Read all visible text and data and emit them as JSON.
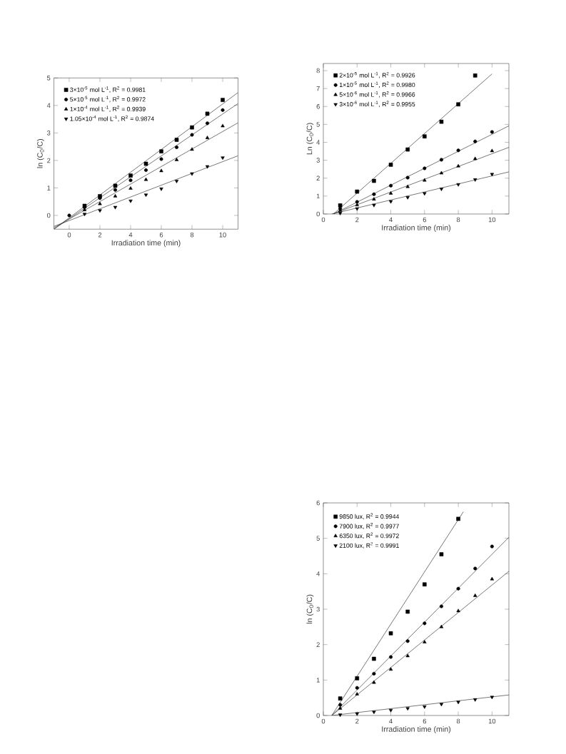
{
  "chart_data": [
    {
      "type": "scatter",
      "xlabel": "Irradiation time (min)",
      "ylabel": "ln (C$_{0}$/C)",
      "xlim": [
        -1,
        11
      ],
      "ylim": [
        -0.5,
        5
      ],
      "xticks": [
        0,
        2,
        4,
        6,
        8,
        10
      ],
      "yticks": [
        0,
        1,
        2,
        3,
        4,
        5
      ],
      "legend": "top left",
      "x": [
        1,
        2,
        3,
        4,
        5,
        6,
        7,
        8,
        9,
        10
      ],
      "series": [
        {
          "name": "3×10$^{-5}$ mol L$^{-1}$,       R$^{2}$ = 0.9981",
          "color": "#000000",
          "marker": "square",
          "values": [
            0.35,
            0.7,
            1.08,
            1.45,
            1.88,
            2.33,
            2.75,
            3.2,
            3.7,
            4.2
          ]
        },
        {
          "name": "5×10$^{-5}$ mol L$^{-1}$,       R$^{2}$ = 0.9972",
          "color": "#000000",
          "marker": "circle",
          "x": [
            0,
            1,
            2,
            3,
            4,
            5,
            6,
            7,
            8,
            9,
            10
          ],
          "values": [
            0.0,
            0.3,
            0.63,
            0.93,
            1.28,
            1.65,
            2.05,
            2.48,
            2.93,
            3.35,
            3.83
          ]
        },
        {
          "name": "1×10$^{-4}$ mol L$^{-1}$,       R$^{2}$ = 0.9939",
          "color": "#000000",
          "marker": "triangle",
          "values": [
            0.2,
            0.42,
            0.7,
            0.98,
            1.3,
            1.62,
            2.02,
            2.4,
            2.82,
            3.25
          ]
        },
        {
          "name": "1.05×10$^{-4}$ mol L$^{-1}$, R$^{2}$ = 0.9874",
          "color": "#000000",
          "marker": "triangle-down",
          "values": [
            0.05,
            0.18,
            0.3,
            0.53,
            0.75,
            0.97,
            1.25,
            1.52,
            1.78,
            2.1
          ]
        },
        {
          "type": "line",
          "color": "#333333",
          "x": [
            -1,
            11
          ],
          "values": [
            -0.5,
            4.47
          ]
        },
        {
          "type": "line",
          "color": "#333333",
          "x": [
            -1,
            11
          ],
          "values": [
            -0.5,
            4.07
          ]
        },
        {
          "type": "line",
          "color": "#333333",
          "x": [
            -1,
            11
          ],
          "values": [
            -0.45,
            3.37
          ]
        },
        {
          "type": "line",
          "color": "#333333",
          "x": [
            -1,
            11
          ],
          "values": [
            -0.4,
            2.17
          ]
        }
      ]
    },
    {
      "type": "scatter",
      "xlabel": "Irradiation time (min)",
      "ylabel": "Ln (C$_{0}$/C)",
      "xlim": [
        0,
        11
      ],
      "ylim": [
        0,
        8.4
      ],
      "xticks": [
        0,
        2,
        4,
        6,
        8,
        10
      ],
      "yticks": [
        0,
        1,
        2,
        3,
        4,
        5,
        6,
        7,
        8
      ],
      "legend": "top left",
      "x": [
        1,
        2,
        3,
        4,
        5,
        6,
        7,
        8,
        9,
        10
      ],
      "series": [
        {
          "name": "2×10$^{-5}$ mol L$^{-1}$,  R$^{2}$ = 0.9926",
          "color": "#000000",
          "marker": "square",
          "x": [
            1,
            2,
            3,
            4,
            5,
            6,
            7,
            8,
            9
          ],
          "values": [
            0.48,
            1.25,
            1.85,
            2.75,
            3.6,
            4.33,
            5.15,
            6.12,
            7.73
          ]
        },
        {
          "name": "1×10$^{-5}$ mol L$^{-1}$,  R$^{2}$ = 0.9980",
          "color": "#000000",
          "marker": "circle",
          "values": [
            0.3,
            0.68,
            1.1,
            1.58,
            2.03,
            2.55,
            3.03,
            3.55,
            4.05,
            4.58
          ]
        },
        {
          "name": "5×10$^{-6}$ mol L$^{-1}$,  R$^{2}$ = 0.9966",
          "color": "#000000",
          "marker": "triangle",
          "values": [
            0.2,
            0.5,
            0.82,
            1.15,
            1.52,
            1.88,
            2.28,
            2.67,
            3.08,
            3.52
          ]
        },
        {
          "name": "3×10$^{-6}$ mol L$^{-1}$,  R$^{2}$ = 0.9955",
          "color": "#000000",
          "marker": "triangle-down",
          "values": [
            0.05,
            0.3,
            0.5,
            0.7,
            0.93,
            1.15,
            1.4,
            1.65,
            1.92,
            2.22
          ]
        },
        {
          "type": "line",
          "color": "#333333",
          "x": [
            0.6,
            10
          ],
          "values": [
            0,
            7.82
          ]
        },
        {
          "type": "line",
          "color": "#333333",
          "x": [
            0.6,
            11
          ],
          "values": [
            0,
            4.92
          ]
        },
        {
          "type": "line",
          "color": "#333333",
          "x": [
            0.55,
            11
          ],
          "values": [
            0,
            3.72
          ]
        },
        {
          "type": "line",
          "color": "#333333",
          "x": [
            0.5,
            11
          ],
          "values": [
            0,
            2.35
          ]
        }
      ]
    },
    {
      "type": "scatter",
      "xlabel": "Irradiation time (min)",
      "ylabel": "ln (C$_{0}$/C)",
      "xlim": [
        0,
        11
      ],
      "ylim": [
        0,
        6
      ],
      "xticks": [
        0,
        2,
        4,
        6,
        8,
        10
      ],
      "yticks": [
        0,
        1,
        2,
        3,
        4,
        5,
        6
      ],
      "legend": "top left",
      "x": [
        1,
        2,
        3,
        4,
        5,
        6,
        7,
        8,
        9,
        10
      ],
      "series": [
        {
          "name": "9850 lux,  R$^{2}$ = 0.9944",
          "color": "#000000",
          "marker": "square",
          "x": [
            1,
            2,
            3,
            4,
            5,
            6,
            7,
            8
          ],
          "values": [
            0.48,
            1.05,
            1.6,
            2.32,
            2.93,
            3.7,
            4.55,
            5.55
          ]
        },
        {
          "name": "7900 lux,  R$^{2}$ = 0.9977",
          "color": "#000000",
          "marker": "circle",
          "values": [
            0.3,
            0.78,
            1.18,
            1.65,
            2.1,
            2.6,
            3.08,
            3.58,
            4.15,
            4.77
          ]
        },
        {
          "name": "6350 lux,  R$^{2}$ = 0.9972",
          "color": "#000000",
          "marker": "triangle",
          "values": [
            0.2,
            0.6,
            0.93,
            1.3,
            1.68,
            2.07,
            2.5,
            2.95,
            3.38,
            3.85
          ]
        },
        {
          "name": "2100 lux,  R$^{2}$ = 0.9991",
          "color": "#000000",
          "marker": "triangle-down",
          "values": [
            0.02,
            0.05,
            0.1,
            0.15,
            0.2,
            0.25,
            0.32,
            0.38,
            0.45,
            0.52
          ]
        },
        {
          "type": "line",
          "color": "#333333",
          "x": [
            0.5,
            8.3
          ],
          "values": [
            0,
            5.75
          ]
        },
        {
          "type": "line",
          "color": "#333333",
          "x": [
            0.5,
            11
          ],
          "values": [
            0,
            5.03
          ]
        },
        {
          "type": "line",
          "color": "#333333",
          "x": [
            0.5,
            11
          ],
          "values": [
            0,
            4.07
          ]
        },
        {
          "type": "line",
          "color": "#333333",
          "x": [
            0.5,
            11
          ],
          "values": [
            0,
            0.58
          ]
        }
      ]
    }
  ]
}
